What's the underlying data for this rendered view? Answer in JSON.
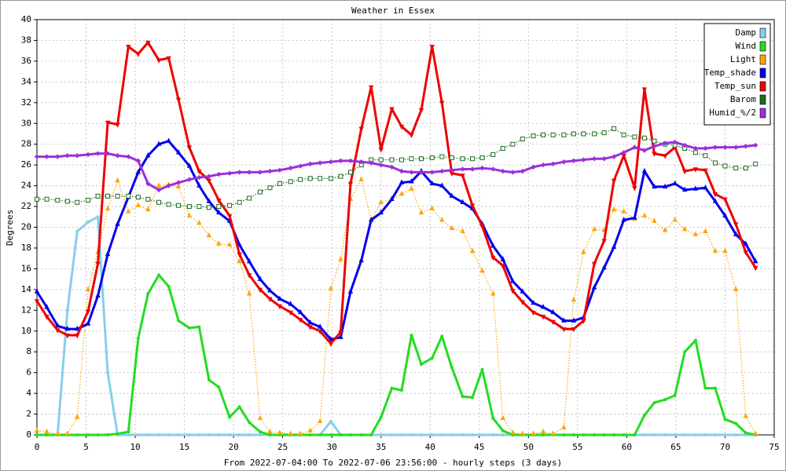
{
  "chart_data": {
    "type": "line",
    "title": "Weather in Essex",
    "x_label": "From 2022-07-04:00 To 2022-07-06 23:56:00 - hourly steps (3 days)",
    "y_label": "Degrees",
    "x": [
      0,
      1,
      2.1,
      3.1,
      4.1,
      5.2,
      6.2,
      7.2,
      8.2,
      9.3,
      10.3,
      11.3,
      12.4,
      13.4,
      14.4,
      15.5,
      16.5,
      17.5,
      18.5,
      19.6,
      20.6,
      21.6,
      22.7,
      23.7,
      24.7,
      25.8,
      26.8,
      27.8,
      28.8,
      29.9,
      30.9,
      31.9,
      33,
      34,
      35,
      36.1,
      37.1,
      38.1,
      39.1,
      40.2,
      41.2,
      42.2,
      43.3,
      44.3,
      45.3,
      46.4,
      47.4,
      48.4,
      49.4,
      50.5,
      51.5,
      52.5,
      53.6,
      54.6,
      55.6,
      56.7,
      57.7,
      58.7,
      59.7,
      60.8,
      61.8,
      62.8,
      63.9,
      64.9,
      65.9,
      67,
      68,
      69,
      70,
      71.1,
      72.1,
      73.1
    ],
    "xlim": [
      0,
      75
    ],
    "xticks": [
      0,
      5,
      10,
      15,
      20,
      25,
      30,
      35,
      40,
      45,
      50,
      55,
      60,
      65,
      70,
      75
    ],
    "ylim": [
      0,
      40
    ],
    "yticks": [
      0,
      2,
      4,
      6,
      8,
      10,
      12,
      14,
      16,
      18,
      20,
      22,
      24,
      26,
      28,
      30,
      32,
      34,
      36,
      38,
      40
    ],
    "grid": true,
    "legend": "upper right",
    "series": [
      {
        "name": "Damp",
        "color": "#87ceeb",
        "marker": "circle",
        "line_style": "solid",
        "values": [
          0,
          0,
          0,
          12,
          19.6,
          20.5,
          21,
          6,
          0,
          0,
          0,
          0,
          0,
          0,
          0,
          0,
          0,
          0,
          0,
          0,
          0,
          0,
          0,
          0,
          0,
          0,
          0,
          0,
          0,
          1.3,
          0,
          0,
          0,
          0,
          0,
          0,
          0,
          0,
          0,
          0,
          0,
          0,
          0,
          0,
          0,
          0,
          0,
          0,
          0,
          0,
          0,
          0,
          0,
          0,
          0,
          0,
          0,
          0,
          0,
          0,
          0,
          0,
          0,
          0,
          0,
          0,
          0,
          0,
          0,
          0,
          0,
          0
        ]
      },
      {
        "name": "Wind",
        "color": "#22dd22",
        "marker": "circle",
        "line_style": "solid",
        "values": [
          0,
          0,
          0,
          0,
          0,
          0,
          0,
          0,
          0.1,
          0.3,
          9.3,
          13.6,
          15.4,
          14.3,
          11,
          10.3,
          10.4,
          5.3,
          4.6,
          1.7,
          2.7,
          1.2,
          0.3,
          0,
          0,
          0,
          0,
          0,
          0,
          0,
          0,
          0,
          0,
          0,
          1.7,
          4.5,
          4.3,
          9.6,
          6.8,
          7.4,
          9.5,
          6.5,
          3.7,
          3.6,
          6.3,
          1.6,
          0.4,
          0,
          0,
          0,
          0,
          0,
          0,
          0,
          0,
          0,
          0,
          0,
          0,
          0,
          1.9,
          3.1,
          3.4,
          3.8,
          8,
          9.1,
          4.5,
          4.5,
          1.5,
          1.1,
          0.2,
          0
        ]
      },
      {
        "name": "Light",
        "color": "#ffa500",
        "marker": "triangle-up",
        "line_style": "dotted",
        "values": [
          0.4,
          0.3,
          0.1,
          0.1,
          1.7,
          14,
          17.6,
          21.8,
          24.5,
          21.5,
          22.1,
          21.7,
          24,
          24.1,
          23.9,
          21.1,
          20.4,
          19.2,
          18.4,
          18.3,
          16.7,
          13.6,
          1.6,
          0.3,
          0.2,
          0.1,
          0.1,
          0.4,
          1.3,
          14.1,
          16.9,
          22.7,
          24.6,
          20.7,
          22.4,
          22.7,
          23.2,
          23.7,
          21.4,
          21.8,
          20.7,
          19.9,
          19.6,
          17.7,
          15.8,
          13.6,
          1.6,
          0.2,
          0.1,
          0.1,
          0.3,
          0.1,
          0.7,
          13,
          17.6,
          19.8,
          19.7,
          21.7,
          21.5,
          20.8,
          21.1,
          20.6,
          19.7,
          20.7,
          19.8,
          19.3,
          19.6,
          17.7,
          17.7,
          14,
          1.8,
          0.1
        ]
      },
      {
        "name": "Temp_shade",
        "color": "#0000ee",
        "marker": "triangle-up",
        "line_style": "solid",
        "values": [
          13.8,
          12.3,
          10.5,
          10.2,
          10.2,
          10.7,
          13.4,
          17.4,
          20.3,
          22.9,
          25.3,
          26.9,
          28,
          28.3,
          27.2,
          25.9,
          24,
          22.5,
          21.4,
          20.6,
          18.3,
          16.7,
          15,
          13.9,
          13.1,
          12.6,
          11.8,
          10.8,
          10.4,
          9.2,
          9.4,
          13.8,
          16.8,
          20.7,
          21.4,
          22.7,
          24.3,
          24.4,
          25.4,
          24.2,
          24,
          23,
          22.4,
          21.8,
          20.3,
          18.2,
          16.9,
          14.8,
          13.8,
          12.7,
          12.3,
          11.8,
          11,
          11,
          11.3,
          14.2,
          16.1,
          18.1,
          20.7,
          20.9,
          25.4,
          23.9,
          23.9,
          24.2,
          23.6,
          23.7,
          23.8,
          22.5,
          21.1,
          19.3,
          18.4,
          16.7
        ]
      },
      {
        "name": "Temp_sun",
        "color": "#ee0000",
        "marker": "triangle-down",
        "line_style": "solid",
        "values": [
          12.9,
          11.4,
          10.1,
          9.6,
          9.6,
          11.9,
          16.5,
          30.1,
          29.9,
          37.4,
          36.7,
          37.8,
          36.1,
          36.3,
          32.3,
          27.7,
          25.4,
          24.5,
          22.6,
          21.1,
          17.4,
          15.4,
          14,
          13.1,
          12.4,
          11.8,
          11.1,
          10.4,
          10,
          8.8,
          9.9,
          24.2,
          29.5,
          33.5,
          27.5,
          31.4,
          29.7,
          28.9,
          31.3,
          37.4,
          32,
          25.2,
          25,
          22.1,
          20.1,
          17.1,
          16.3,
          13.9,
          12.8,
          11.8,
          11.4,
          10.9,
          10.2,
          10.2,
          11,
          16.5,
          18.7,
          24.5,
          26.9,
          23.8,
          33.3,
          27.1,
          26.9,
          27.7,
          25.4,
          25.6,
          25.5,
          23.2,
          22.7,
          20.3,
          17.6,
          16.1
        ]
      },
      {
        "name": "Barom",
        "color": "#1a6b1a",
        "marker": "square-open",
        "line_style": "dotted",
        "values": [
          22.7,
          22.7,
          22.6,
          22.5,
          22.4,
          22.6,
          23,
          23,
          23,
          23,
          22.9,
          22.7,
          22.4,
          22.2,
          22.1,
          22,
          22,
          21.9,
          22,
          22.1,
          22.4,
          22.8,
          23.4,
          23.8,
          24.2,
          24.4,
          24.6,
          24.7,
          24.7,
          24.7,
          24.9,
          25.3,
          26,
          26.5,
          26.5,
          26.5,
          26.5,
          26.6,
          26.6,
          26.7,
          26.8,
          26.7,
          26.6,
          26.6,
          26.7,
          27,
          27.6,
          28,
          28.5,
          28.8,
          28.9,
          28.9,
          28.9,
          29,
          29,
          29,
          29.1,
          29.5,
          28.9,
          28.7,
          28.6,
          28.3,
          28,
          27.9,
          27.6,
          27.2,
          26.9,
          26.2,
          25.9,
          25.7,
          25.7,
          26.1
        ]
      },
      {
        "name": "Humid_%/2",
        "color": "#9b30d9",
        "marker": "diamond",
        "line_style": "solid",
        "values": [
          26.8,
          26.8,
          26.8,
          26.9,
          26.9,
          27,
          27.1,
          27.1,
          26.9,
          26.8,
          26.4,
          24.2,
          23.6,
          24,
          24.3,
          24.6,
          24.8,
          24.9,
          25.1,
          25.2,
          25.3,
          25.3,
          25.3,
          25.4,
          25.5,
          25.7,
          25.9,
          26.1,
          26.2,
          26.3,
          26.4,
          26.4,
          26.3,
          26.2,
          26,
          25.8,
          25.4,
          25.3,
          25.3,
          25.3,
          25.4,
          25.5,
          25.6,
          25.6,
          25.7,
          25.6,
          25.4,
          25.3,
          25.4,
          25.8,
          26,
          26.1,
          26.3,
          26.4,
          26.5,
          26.6,
          26.6,
          26.8,
          27.2,
          27.7,
          27.4,
          27.8,
          28.1,
          28.2,
          27.9,
          27.6,
          27.6,
          27.7,
          27.7,
          27.7,
          27.8,
          27.9
        ]
      }
    ]
  }
}
